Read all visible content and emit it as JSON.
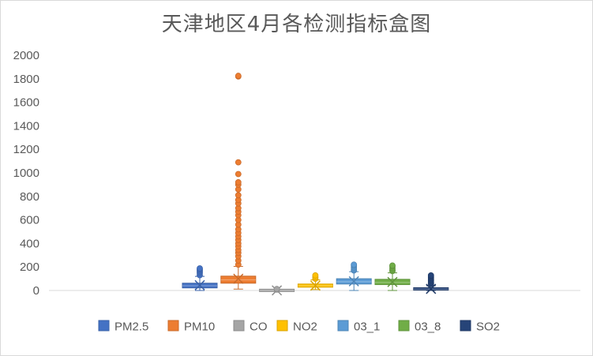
{
  "chart_data": {
    "type": "box",
    "title": "天津地区4月各检测指标盒图",
    "xlabel": "",
    "ylabel": "",
    "ylim": [
      0,
      2000
    ],
    "yticks": [
      0,
      200,
      400,
      600,
      800,
      1000,
      1200,
      1400,
      1600,
      1800,
      2000
    ],
    "grid": false,
    "legend_position": "bottom",
    "series": [
      {
        "name": "PM2.5",
        "color": "#4472c4",
        "min": 0,
        "q1": 22,
        "median": 40,
        "q3": 62,
        "max": 120,
        "mean": 45,
        "outliers": [
          130,
          148,
          160,
          170,
          180,
          188
        ]
      },
      {
        "name": "PM10",
        "color": "#ed7d31",
        "min": 12,
        "q1": 62,
        "median": 90,
        "q3": 122,
        "max": 205,
        "mean": 100,
        "outliers": [
          220,
          255,
          290,
          320,
          345,
          375,
          400,
          430,
          460,
          490,
          520,
          560,
          600,
          640,
          670,
          700,
          740,
          770,
          810,
          860,
          900,
          920,
          990,
          1090,
          1820,
          1825
        ]
      },
      {
        "name": "CO",
        "color": "#a5a5a5",
        "min": 0,
        "q1": 0,
        "median": 1,
        "q3": 2,
        "max": 4,
        "mean": 1,
        "outliers": [
          8,
          12
        ]
      },
      {
        "name": "NO2",
        "color": "#ffc000",
        "min": 8,
        "q1": 28,
        "median": 40,
        "q3": 55,
        "max": 90,
        "mean": 42,
        "outliers": [
          100,
          112,
          128
        ]
      },
      {
        "name": "03_1",
        "color": "#5b9bd5",
        "min": 0,
        "q1": 55,
        "median": 75,
        "q3": 100,
        "max": 160,
        "mean": 78,
        "outliers": [
          170,
          180,
          195,
          210,
          220
        ]
      },
      {
        "name": "03_8",
        "color": "#70ad47",
        "min": 0,
        "q1": 50,
        "median": 68,
        "q3": 95,
        "max": 150,
        "mean": 72,
        "outliers": [
          165,
          175,
          190,
          205,
          212
        ]
      },
      {
        "name": "SO2",
        "color": "#264478",
        "min": 0,
        "q1": 5,
        "median": 12,
        "q3": 22,
        "max": 40,
        "mean": 14,
        "outliers": [
          55,
          68,
          82,
          95,
          108,
          120,
          128
        ]
      }
    ]
  }
}
